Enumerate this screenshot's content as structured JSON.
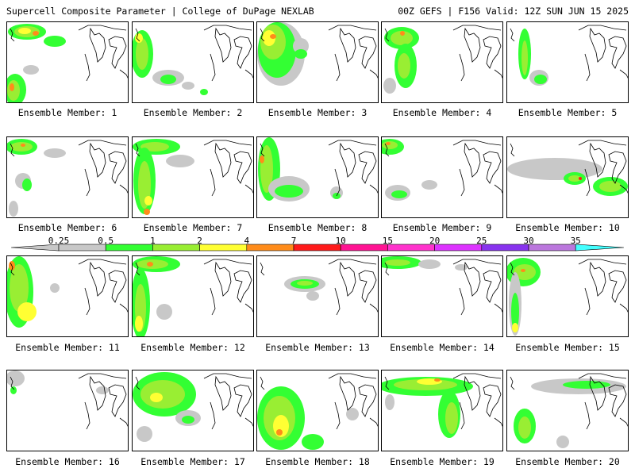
{
  "header": {
    "title": "Supercell Composite Parameter | College of DuPage NEXLAB",
    "run_info": "00Z GEFS | F156 Valid: 12Z SUN JUN 15 2025"
  },
  "colorbar": {
    "levels": [
      "0.25",
      "0.5",
      "1",
      "2",
      "4",
      "7",
      "10",
      "15",
      "20",
      "25",
      "30",
      "35"
    ],
    "colors": [
      "#c8c8c8",
      "#33ff33",
      "#99ee33",
      "#ffff33",
      "#ff8c1a",
      "#ff1a1a",
      "#ff1493",
      "#ff33cc",
      "#dd33ff",
      "#8833ee",
      "#bb77dd",
      "#44ffff"
    ]
  },
  "panels": [
    {
      "label": "Ensemble Member: 1"
    },
    {
      "label": "Ensemble Member: 2"
    },
    {
      "label": "Ensemble Member: 3"
    },
    {
      "label": "Ensemble Member: 4"
    },
    {
      "label": "Ensemble Member: 5"
    },
    {
      "label": "Ensemble Member: 6"
    },
    {
      "label": "Ensemble Member: 7"
    },
    {
      "label": "Ensemble Member: 8"
    },
    {
      "label": "Ensemble Member: 9"
    },
    {
      "label": "Ensemble Member: 10"
    },
    {
      "label": "Ensemble Member: 11"
    },
    {
      "label": "Ensemble Member: 12"
    },
    {
      "label": "Ensemble Member: 13"
    },
    {
      "label": "Ensemble Member: 14"
    },
    {
      "label": "Ensemble Member: 15"
    },
    {
      "label": "Ensemble Member: 16"
    },
    {
      "label": "Ensemble Member: 17"
    },
    {
      "label": "Ensemble Member: 18"
    },
    {
      "label": "Ensemble Member: 19"
    },
    {
      "label": "Ensemble Member: 20"
    }
  ]
}
